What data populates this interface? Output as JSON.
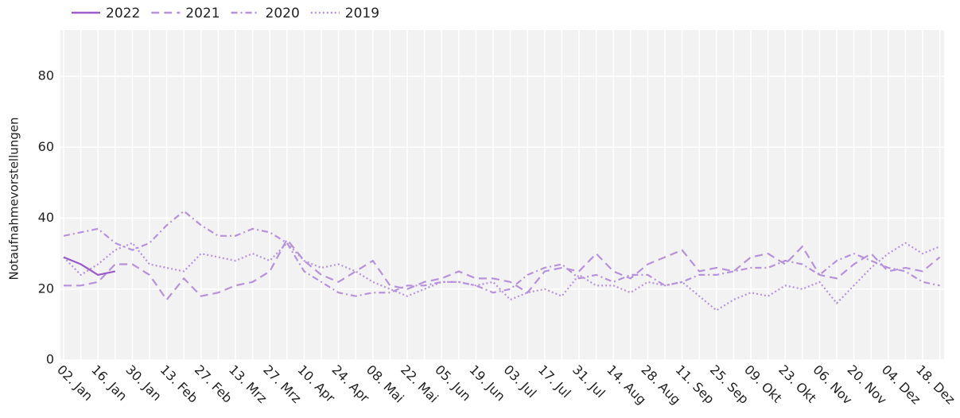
{
  "chart_data": {
    "type": "line",
    "y_label": "Notaufnahmevorstellungen",
    "categories": [
      "02. Jan",
      null,
      "16. Jan",
      null,
      "30. Jan",
      null,
      "13. Feb",
      null,
      "27. Feb",
      null,
      "13. Mrz",
      null,
      "27. Mrz",
      null,
      "10. Apr",
      null,
      "24. Apr",
      null,
      "08. Mai",
      null,
      "22. Mai",
      null,
      "05. Jun",
      null,
      "19. Jun",
      null,
      "03. Jul",
      null,
      "17. Jul",
      null,
      "31. Jul",
      null,
      "14. Aug",
      null,
      "28. Aug",
      null,
      "11. Sep",
      null,
      "25. Sep",
      null,
      "09. Okt",
      null,
      "23. Okt",
      null,
      "06. Nov",
      null,
      "20. Nov",
      null,
      "04. Dez",
      null,
      "18. Dez",
      null
    ],
    "series": [
      {
        "name": "2022",
        "color": "#9b5bc8",
        "dash": "none",
        "values": [
          29,
          27,
          24,
          25,
          null,
          null,
          null,
          null,
          null,
          null,
          null,
          null,
          null,
          null,
          null,
          null,
          null,
          null,
          null,
          null,
          null,
          null,
          null,
          null,
          null,
          null,
          null,
          null,
          null,
          null,
          null,
          null,
          null,
          null,
          null,
          null,
          null,
          null,
          null,
          null,
          null,
          null,
          null,
          null,
          null,
          null,
          null,
          null,
          null,
          null,
          null,
          null
        ]
      },
      {
        "name": "2021",
        "color": "#b692dc",
        "dash": "10,6",
        "values": [
          21,
          21,
          22,
          27,
          27,
          24,
          17,
          23,
          18,
          19,
          21,
          22,
          25,
          34,
          28,
          24,
          22,
          25,
          28,
          21,
          20,
          22,
          23,
          25,
          23,
          23,
          22,
          19,
          25,
          26,
          25,
          30,
          25,
          23,
          27,
          29,
          31,
          25,
          26,
          25,
          29,
          30,
          27,
          32,
          24,
          23,
          27,
          30,
          25,
          26,
          25,
          29
        ]
      },
      {
        "name": "2020",
        "color": "#b692dc",
        "dash": "8,4,2,4",
        "values": [
          35,
          36,
          37,
          33,
          31,
          33,
          38,
          42,
          38,
          35,
          35,
          37,
          36,
          33,
          25,
          22,
          19,
          18,
          19,
          19,
          21,
          21,
          22,
          22,
          21,
          19,
          20,
          24,
          26,
          27,
          23,
          24,
          22,
          24,
          24,
          21,
          22,
          24,
          24,
          25,
          26,
          26,
          28,
          27,
          24,
          28,
          30,
          28,
          26,
          25,
          22,
          21
        ]
      },
      {
        "name": "2019",
        "color": "#b692dc",
        "dash": "2,3",
        "values": [
          29,
          24,
          27,
          31,
          33,
          27,
          26,
          25,
          30,
          29,
          28,
          30,
          28,
          33,
          28,
          26,
          27,
          25,
          22,
          20,
          18,
          20,
          22,
          22,
          21,
          22,
          17,
          19,
          20,
          18,
          24,
          21,
          21,
          19,
          22,
          21,
          22,
          18,
          14,
          17,
          19,
          18,
          21,
          20,
          22,
          16,
          21,
          26,
          30,
          33,
          30,
          32
        ]
      }
    ],
    "ylim": [
      0,
      93
    ],
    "yticks": [
      0,
      20,
      40,
      60,
      80
    ],
    "grid": true,
    "legend": "top-left"
  }
}
